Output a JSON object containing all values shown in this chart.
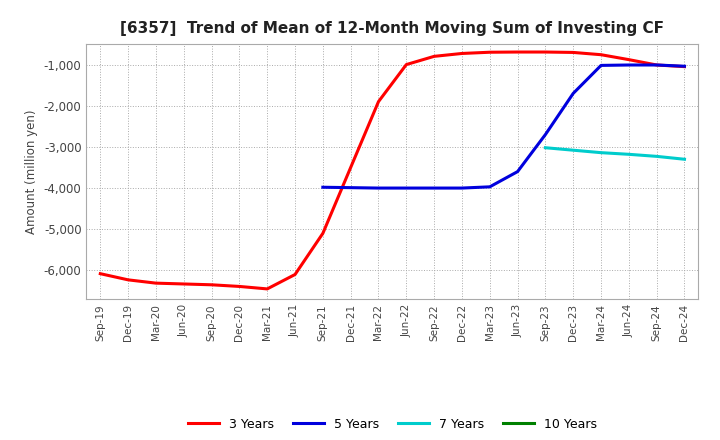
{
  "title": "[6357]  Trend of Mean of 12-Month Moving Sum of Investing CF",
  "ylabel": "Amount (million yen)",
  "background_color": "#ffffff",
  "grid_color": "#aaaaaa",
  "ylim": [
    -6700,
    -500
  ],
  "yticks": [
    -6000,
    -5000,
    -4000,
    -3000,
    -2000,
    -1000
  ],
  "x_labels": [
    "Sep-19",
    "Dec-19",
    "Mar-20",
    "Jun-20",
    "Sep-20",
    "Dec-20",
    "Mar-21",
    "Jun-21",
    "Sep-21",
    "Dec-21",
    "Mar-22",
    "Jun-22",
    "Sep-22",
    "Dec-22",
    "Mar-23",
    "Jun-23",
    "Sep-23",
    "Dec-23",
    "Mar-24",
    "Jun-24",
    "Sep-24",
    "Dec-24"
  ],
  "series": {
    "3 Years": {
      "color": "#ff0000",
      "linewidth": 2.2,
      "data_x": [
        0,
        1,
        2,
        3,
        4,
        5,
        6,
        7,
        8,
        9,
        10,
        11,
        12,
        13,
        14,
        15,
        16,
        17,
        18,
        19,
        20,
        21
      ],
      "data_y": [
        -6080,
        -6230,
        -6310,
        -6330,
        -6350,
        -6390,
        -6450,
        -6100,
        -5100,
        -3500,
        -1900,
        -1000,
        -800,
        -730,
        -700,
        -695,
        -695,
        -705,
        -760,
        -880,
        -1010,
        -1050
      ]
    },
    "5 Years": {
      "color": "#0000dd",
      "linewidth": 2.2,
      "data_x": [
        8,
        9,
        10,
        11,
        12,
        13,
        14,
        15,
        16,
        17,
        18,
        19,
        20,
        21
      ],
      "data_y": [
        -3980,
        -3990,
        -4000,
        -4000,
        -4000,
        -4000,
        -3970,
        -3600,
        -2700,
        -1700,
        -1020,
        -1010,
        -1010,
        -1040
      ]
    },
    "7 Years": {
      "color": "#00cccc",
      "linewidth": 2.2,
      "data_x": [
        16,
        17,
        18,
        19,
        20,
        21
      ],
      "data_y": [
        -3020,
        -3080,
        -3140,
        -3180,
        -3230,
        -3300
      ]
    },
    "10 Years": {
      "color": "#008000",
      "linewidth": 2.2,
      "data_x": [],
      "data_y": []
    }
  },
  "legend_order": [
    "3 Years",
    "5 Years",
    "7 Years",
    "10 Years"
  ]
}
